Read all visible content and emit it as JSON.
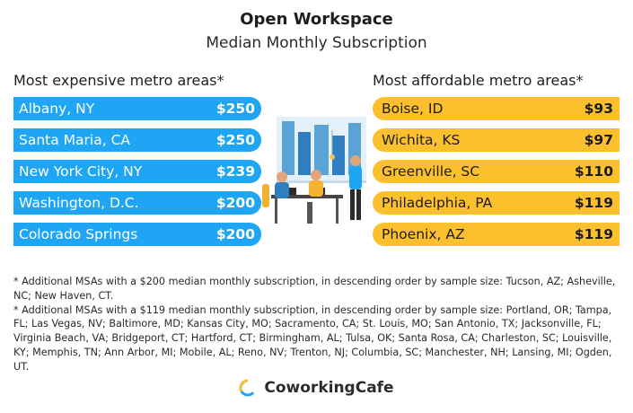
{
  "title": "Open Workspace",
  "subtitle": "Median Monthly Subscription",
  "left_heading": "Most expensive metro areas*",
  "right_heading": "Most affordable metro areas*",
  "colors": {
    "expensive": "#1ea6f5",
    "affordable": "#fcc02e"
  },
  "chart_data": [
    {
      "type": "bar",
      "title": "Most expensive metro areas*",
      "categories": [
        "Albany, NY",
        "Santa Maria, CA",
        "New York City, NY",
        "Washington, D.C.",
        "Colorado Springs"
      ],
      "values": [
        250,
        250,
        239,
        200,
        200
      ],
      "value_labels": [
        "$250",
        "$250",
        "$239",
        "$200",
        "$200"
      ],
      "orientation": "horizontal",
      "color": "#1ea6f5"
    },
    {
      "type": "bar",
      "title": "Most affordable metro areas*",
      "categories": [
        "Boise, ID",
        "Wichita, KS",
        "Greenville, SC",
        "Philadelphia, PA",
        "Phoenix, AZ"
      ],
      "values": [
        93,
        97,
        110,
        119,
        119
      ],
      "value_labels": [
        "$93",
        "$97",
        "$110",
        "$119",
        "$119"
      ],
      "orientation": "horizontal",
      "color": "#fcc02e"
    }
  ],
  "notes": [
    "* Additional MSAs with a $200 median monthly subscription, in descending order by sample size: Tucson, AZ; Asheville, NC; New Haven, CT.",
    "* Additional MSAs with a $119 median monthly subscription, in descending order by sample size: Portland, OR; Tampa, FL; Las Vegas, NV; Baltimore, MD; Kansas City, MO; Sacramento, CA; St. Louis, MO; San Antonio, TX; Jacksonville, FL; Virginia Beach, VA; Bridgeport, CT; Hartford, CT; Birmingham, AL; Tulsa, OK; Santa Rosa, CA; Charleston, SC; Louisville, KY; Memphis, TN; Ann Arbor, MI; Mobile, AL; Reno, NV; Trenton, NJ; Columbia, SC; Manchester, NH; Lansing, MI; Ogden, UT."
  ],
  "brand": {
    "name": "CoworkingCafe",
    "icon": "coworkingcafe-logo-icon"
  }
}
